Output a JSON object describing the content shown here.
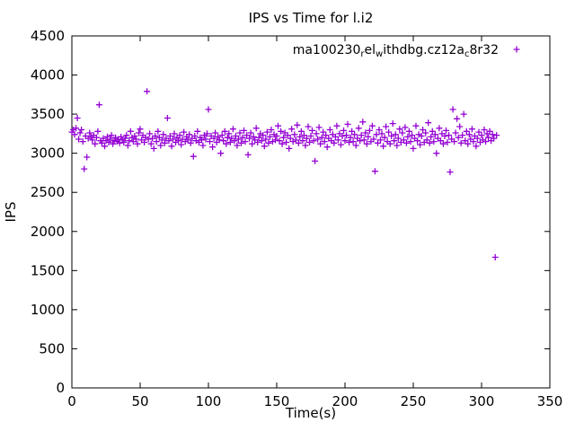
{
  "chart_data": {
    "type": "scatter",
    "title": "IPS vs Time for l.i2",
    "xlabel": "Time(s)",
    "ylabel": "IPS",
    "xlim": [
      0,
      350
    ],
    "ylim": [
      0,
      4500
    ],
    "xtick_step": 50,
    "ytick_step": 500,
    "grid": false,
    "legend_position": "top-right-inside",
    "marker": "plus",
    "marker_color": "#9400D3",
    "legend_label": "ma100230_rel_withdbg.cz12a_c8r32",
    "legend_segments": [
      {
        "text": "ma100230",
        "sub": false
      },
      {
        "text": "r",
        "sub": true
      },
      {
        "text": "el",
        "sub": false
      },
      {
        "text": "w",
        "sub": true
      },
      {
        "text": "ithdbg.cz12a",
        "sub": false
      },
      {
        "text": "c",
        "sub": true
      },
      {
        "text": "8r32",
        "sub": false
      }
    ],
    "series_name": "ma100230_rel_withdbg.cz12a_c8r32",
    "x_start": 0,
    "x_step": 1,
    "values": [
      3270,
      3300,
      3240,
      3320,
      3450,
      3180,
      3260,
      3300,
      3150,
      2800,
      3220,
      2950,
      3190,
      3260,
      3210,
      3170,
      3230,
      3120,
      3200,
      3280,
      3620,
      3160,
      3130,
      3190,
      3090,
      3160,
      3210,
      3140,
      3180,
      3230,
      3120,
      3160,
      3200,
      3150,
      3180,
      3130,
      3210,
      3170,
      3140,
      3190,
      3230,
      3100,
      3160,
      3280,
      3200,
      3150,
      3220,
      3180,
      3120,
      3260,
      3310,
      3170,
      3230,
      3140,
      3200,
      3790,
      3180,
      3250,
      3120,
      3190,
      3060,
      3220,
      3150,
      3280,
      3200,
      3100,
      3170,
      3240,
      3130,
      3190,
      3450,
      3160,
      3220,
      3090,
      3180,
      3250,
      3140,
      3200,
      3160,
      3230,
      3110,
      3180,
      3270,
      3150,
      3210,
      3170,
      3240,
      3130,
      3190,
      2960,
      3220,
      3160,
      3280,
      3140,
      3200,
      3170,
      3100,
      3230,
      3180,
      3250,
      3560,
      3150,
      3220,
      3080,
      3190,
      3260,
      3140,
      3210,
      3170,
      3000,
      3230,
      3160,
      3280,
      3120,
      3200,
      3250,
      3140,
      3190,
      3310,
      3160,
      3220,
      3100,
      3180,
      3260,
      3130,
      3200,
      3290,
      3150,
      3230,
      2980,
      3190,
      3260,
      3120,
      3210,
      3170,
      3320,
      3140,
      3200,
      3250,
      3160,
      3230,
      3090,
      3180,
      3270,
      3130,
      3210,
      3300,
      3150,
      3240,
      3170,
      3220,
      3350,
      3160,
      3280,
      3120,
      3200,
      3260,
      3140,
      3230,
      3060,
      3190,
      3310,
      3150,
      3240,
      3170,
      3360,
      3130,
      3210,
      3280,
      3160,
      3230,
      3100,
      3190,
      3340,
      3140,
      3220,
      3290,
      3160,
      2900,
      3250,
      3180,
      3330,
      3120,
      3200,
      3270,
      3150,
      3230,
      3080,
      3190,
      3300,
      3160,
      3240,
      3130,
      3210,
      3350,
      3170,
      3250,
      3110,
      3220,
      3290,
      3160,
      3230,
      3370,
      3140,
      3200,
      3280,
      3150,
      3240,
      3100,
      3190,
      3320,
      3160,
      3230,
      3400,
      3170,
      3260,
      3120,
      3210,
      3290,
      3150,
      3350,
      3180,
      2770,
      3240,
      3130,
      3300,
      3170,
      3250,
      3090,
      3200,
      3340,
      3150,
      3270,
      3120,
      3220,
      3380,
      3160,
      3240,
      3100,
      3190,
      3310,
      3140,
      3260,
      3170,
      3330,
      3130,
      3210,
      3280,
      3150,
      3230,
      3060,
      3190,
      3350,
      3160,
      3240,
      3110,
      3220,
      3300,
      3140,
      3260,
      3170,
      3390,
      3130,
      3210,
      3280,
      3150,
      3240,
      3000,
      3190,
      3320,
      3160,
      3250,
      3120,
      3220,
      3290,
      3140,
      3230,
      2760,
      3180,
      3560,
      3150,
      3260,
      3440,
      3200,
      3340,
      3130,
      3230,
      3500,
      3160,
      3280,
      3120,
      3240,
      3180,
      3310,
      3150,
      3220,
      3090,
      3190,
      3270,
      3140,
      3230,
      3170,
      3300,
      3150,
      3250,
      3200,
      3280,
      3160,
      3240,
      3190,
      1670,
      3230
    ]
  }
}
